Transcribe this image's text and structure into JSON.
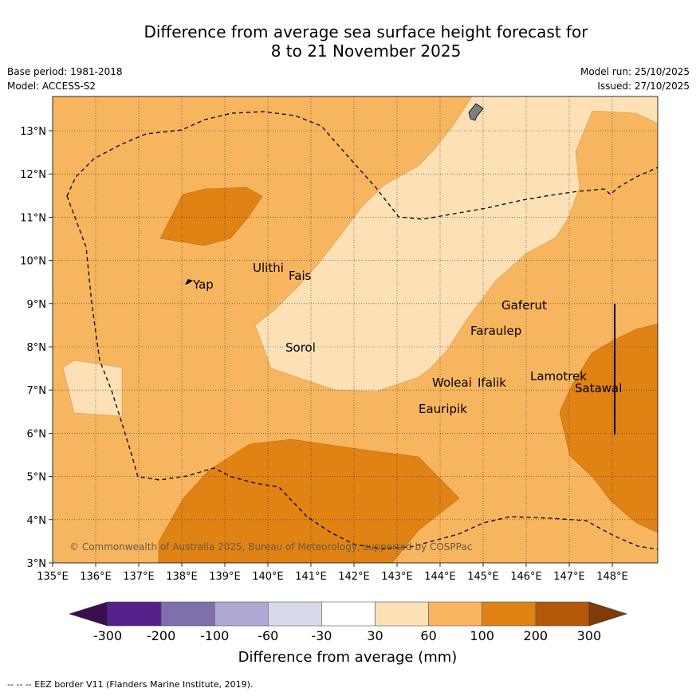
{
  "title_line1": "Difference from average sea surface height forecast for",
  "title_line2": "8 to 21 November 2025",
  "base_period": "Base period: 1981-2018",
  "model": "Model: ACCESS-S2",
  "model_run": "Model run: 25/10/2025",
  "issued": "Issued: 27/10/2025",
  "map": {
    "lon_ticks": [
      "135°E",
      "136°E",
      "137°E",
      "138°E",
      "139°E",
      "140°E",
      "141°E",
      "142°E",
      "143°E",
      "144°E",
      "145°E",
      "146°E",
      "147°E",
      "148°E"
    ],
    "lat_ticks": [
      "3°N",
      "4°N",
      "5°N",
      "6°N",
      "7°N",
      "8°N",
      "9°N",
      "10°N",
      "11°N",
      "12°N",
      "13°N"
    ],
    "places": [
      "Ulithi",
      "Fais",
      "Yap",
      "Gaferut",
      "Faraulep",
      "Sorol",
      "Lamotrek",
      "Woleai",
      "Ifalik",
      "Satawal",
      "Eauripik"
    ],
    "copyright": "© Commonwealth of Australia 2025, Bureau of Meteorology, supported by COSPPac"
  },
  "colorbar": {
    "ticks": [
      "-300",
      "-200",
      "-100",
      "-60",
      "-30",
      "30",
      "60",
      "100",
      "200",
      "300"
    ],
    "label": "Difference from average (mm)",
    "colors": [
      "#3b0f4f",
      "#54208a",
      "#7f70ad",
      "#aea9d2",
      "#d9d9ec",
      "#ffffff",
      "#fde0b6",
      "#f8b55f",
      "#e08214",
      "#b35806",
      "#7f3b08"
    ]
  },
  "footer": "-- -- -- EEZ border V11 (Flanders Marine Institute, 2019)."
}
